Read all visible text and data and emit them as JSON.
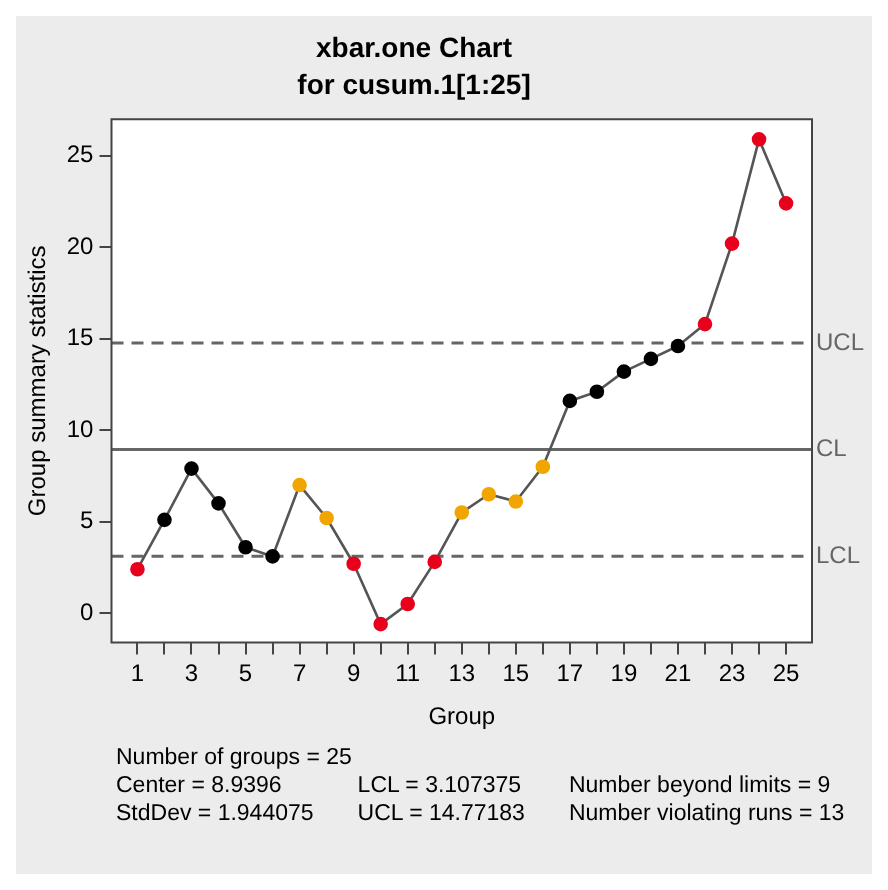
{
  "chart_data": {
    "type": "line",
    "title": "xbar.one Chart",
    "subtitle": "for cusum.1[1:25]",
    "xlabel": "Group",
    "ylabel": "Group summary statistics",
    "x": [
      1,
      2,
      3,
      4,
      5,
      6,
      7,
      8,
      9,
      10,
      11,
      12,
      13,
      14,
      15,
      16,
      17,
      18,
      19,
      20,
      21,
      22,
      23,
      24,
      25
    ],
    "series": [
      {
        "color": "#555555",
        "values": [
          2.4,
          5.1,
          7.9,
          6.0,
          3.6,
          3.1,
          7.0,
          5.2,
          2.7,
          -0.6,
          0.5,
          2.8,
          5.5,
          6.5,
          6.1,
          8.0,
          11.6,
          12.1,
          13.2,
          13.9,
          14.6,
          15.8,
          20.2,
          25.9,
          22.4
        ],
        "colors": [
          "#e8001c",
          "#000000",
          "#000000",
          "#000000",
          "#000000",
          "#000000",
          "#f0a500",
          "#f0a500",
          "#e8001c",
          "#e8001c",
          "#e8001c",
          "#e8001c",
          "#f0a500",
          "#f0a500",
          "#f0a500",
          "#f0a500",
          "#000000",
          "#000000",
          "#000000",
          "#000000",
          "#000000",
          "#e8001c",
          "#e8001c",
          "#e8001c",
          "#e8001c"
        ]
      }
    ],
    "xlim": [
      0.04,
      25.96
    ],
    "xticks": [
      1,
      {
        "value": 2,
        "label": null
      },
      3,
      {
        "value": 4,
        "label": null
      },
      5,
      {
        "value": 6,
        "label": null
      },
      7,
      {
        "value": 8,
        "label": null
      },
      9,
      {
        "value": 10,
        "label": null
      },
      11,
      {
        "value": 12,
        "label": null
      },
      13,
      {
        "value": 14,
        "label": null
      },
      15,
      {
        "value": 16,
        "label": null
      },
      17,
      {
        "value": 18,
        "label": null
      },
      19,
      {
        "value": 20,
        "label": null
      },
      21,
      {
        "value": 22,
        "label": null
      },
      23,
      {
        "value": 24,
        "label": null
      },
      25
    ],
    "ylim": [
      -1.6,
      27
    ],
    "yticks": [
      0,
      5,
      10,
      15,
      20,
      25
    ],
    "ref_lines": [
      {
        "axis": "y",
        "value": 14.77183,
        "label": "UCL",
        "color": "#666666",
        "line_style": "dashed"
      },
      {
        "axis": "y",
        "value": 8.9396,
        "label": "CL",
        "color": "#666666",
        "line_style": "solid"
      },
      {
        "axis": "y",
        "value": 3.107375,
        "label": "LCL",
        "color": "#666666",
        "line_style": "dashed"
      }
    ],
    "annotations": [
      "Number of groups = 25",
      "Center = 8.9396",
      "StdDev = 1.944075",
      "LCL = 3.107375",
      "UCL = 14.77183",
      "Number beyond limits = 9",
      "Number violating runs = 13"
    ],
    "grid": false,
    "legend": false,
    "marker": "circle",
    "line_style": "solid"
  }
}
